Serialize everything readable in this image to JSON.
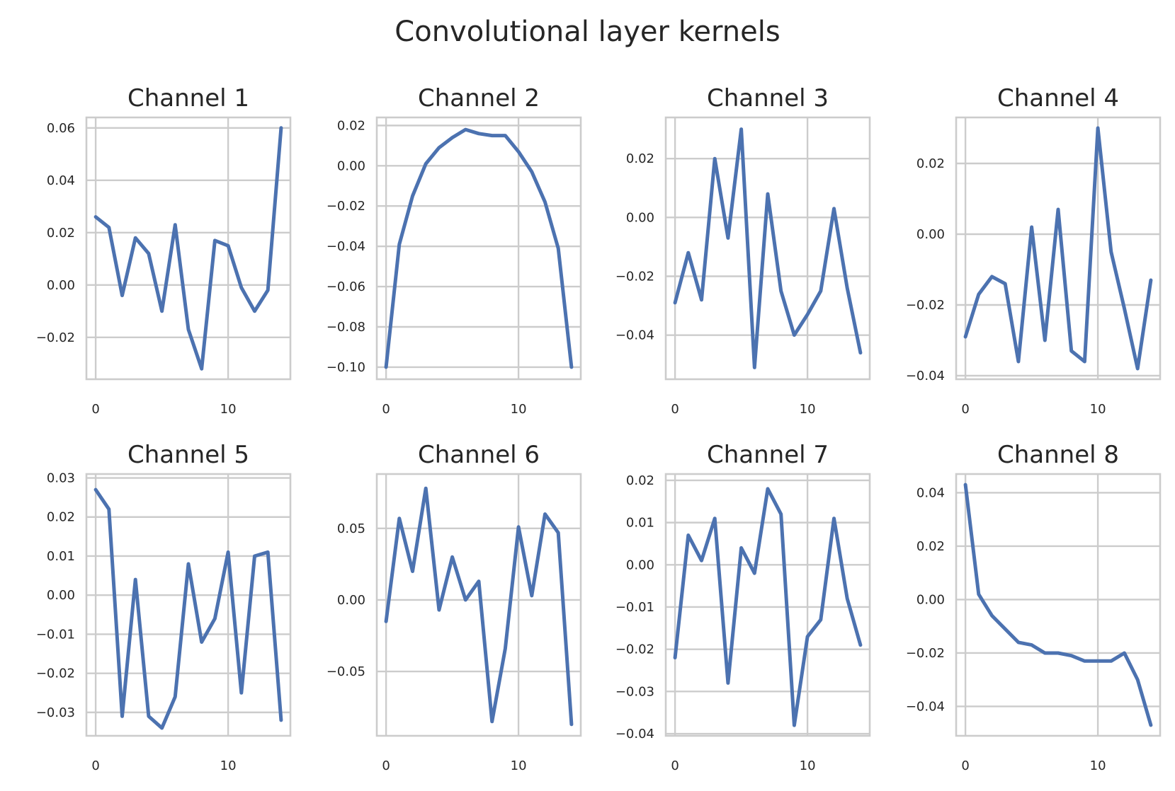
{
  "figure": {
    "title": "Convolutional layer kernels",
    "line_color": "#4c72b0",
    "grid_color": "#cccccc",
    "spine_color": "#cccccc"
  },
  "chart_data": [
    {
      "type": "line",
      "title": "Channel 1",
      "x": [
        0,
        1,
        2,
        3,
        4,
        5,
        6,
        7,
        8,
        9,
        10,
        11,
        12,
        13,
        14
      ],
      "values": [
        0.026,
        0.022,
        -0.004,
        0.018,
        0.012,
        -0.01,
        0.023,
        -0.017,
        -0.032,
        0.017,
        0.015,
        -0.001,
        -0.01,
        -0.002,
        0.06
      ],
      "xticks": [
        0,
        10
      ],
      "xtick_labels": [
        "0",
        "10"
      ],
      "yticks": [
        -0.02,
        0,
        0.02,
        0.04,
        0.06
      ],
      "ytick_labels": [
        "−0.02",
        "0.00",
        "0.02",
        "0.04",
        "0.06"
      ],
      "xlim": [
        -0.7,
        14.7
      ],
      "ylim": [
        -0.036,
        0.064
      ],
      "grid": true
    },
    {
      "type": "line",
      "title": "Channel 2",
      "x": [
        0,
        1,
        2,
        3,
        4,
        5,
        6,
        7,
        8,
        9,
        10,
        11,
        12,
        13,
        14
      ],
      "values": [
        -0.1,
        -0.039,
        -0.015,
        0.001,
        0.009,
        0.014,
        0.018,
        0.016,
        0.015,
        0.015,
        0.007,
        -0.003,
        -0.018,
        -0.041,
        -0.1
      ],
      "xticks": [
        0,
        10
      ],
      "xtick_labels": [
        "0",
        "10"
      ],
      "yticks": [
        -0.1,
        -0.08,
        -0.06,
        -0.04,
        -0.02,
        0,
        0.02
      ],
      "ytick_labels": [
        "−0.10",
        "−0.08",
        "−0.06",
        "−0.04",
        "−0.02",
        "0.00",
        "0.02"
      ],
      "xlim": [
        -0.7,
        14.7
      ],
      "ylim": [
        -0.106,
        0.024
      ],
      "grid": true
    },
    {
      "type": "line",
      "title": "Channel 3",
      "x": [
        0,
        1,
        2,
        3,
        4,
        5,
        6,
        7,
        8,
        9,
        10,
        11,
        12,
        13,
        14
      ],
      "values": [
        -0.029,
        -0.012,
        -0.028,
        0.02,
        -0.007,
        0.03,
        -0.051,
        0.008,
        -0.025,
        -0.04,
        -0.033,
        -0.025,
        0.003,
        -0.024,
        -0.046
      ],
      "xticks": [
        0,
        10
      ],
      "xtick_labels": [
        "0",
        "10"
      ],
      "yticks": [
        -0.04,
        -0.02,
        0,
        0.02
      ],
      "ytick_labels": [
        "−0.04",
        "−0.02",
        "0.00",
        "0.02"
      ],
      "xlim": [
        -0.7,
        14.7
      ],
      "ylim": [
        -0.055,
        0.034
      ],
      "grid": true
    },
    {
      "type": "line",
      "title": "Channel 4",
      "x": [
        0,
        1,
        2,
        3,
        4,
        5,
        6,
        7,
        8,
        9,
        10,
        11,
        12,
        13,
        14
      ],
      "values": [
        -0.029,
        -0.017,
        -0.012,
        -0.014,
        -0.036,
        0.002,
        -0.03,
        0.007,
        -0.033,
        -0.036,
        0.03,
        -0.005,
        -0.021,
        -0.038,
        -0.013
      ],
      "xticks": [
        0,
        10
      ],
      "xtick_labels": [
        "0",
        "10"
      ],
      "yticks": [
        -0.04,
        -0.02,
        0,
        0.02
      ],
      "ytick_labels": [
        "−0.04",
        "−0.02",
        "0.00",
        "0.02"
      ],
      "xlim": [
        -0.7,
        14.7
      ],
      "ylim": [
        -0.041,
        0.033
      ],
      "grid": true
    },
    {
      "type": "line",
      "title": "Channel 5",
      "x": [
        0,
        1,
        2,
        3,
        4,
        5,
        6,
        7,
        8,
        9,
        10,
        11,
        12,
        13,
        14
      ],
      "values": [
        0.027,
        0.022,
        -0.031,
        0.004,
        -0.031,
        -0.034,
        -0.026,
        0.008,
        -0.012,
        -0.006,
        0.011,
        -0.025,
        0.01,
        0.011,
        -0.032
      ],
      "xticks": [
        0,
        10
      ],
      "xtick_labels": [
        "0",
        "10"
      ],
      "yticks": [
        -0.03,
        -0.02,
        -0.01,
        0,
        0.01,
        0.02,
        0.03
      ],
      "ytick_labels": [
        "−0.03",
        "−0.02",
        "−0.01",
        "0.00",
        "0.01",
        "0.02",
        "0.03"
      ],
      "xlim": [
        -0.7,
        14.7
      ],
      "ylim": [
        -0.036,
        0.031
      ],
      "grid": true
    },
    {
      "type": "line",
      "title": "Channel 6",
      "x": [
        0,
        1,
        2,
        3,
        4,
        5,
        6,
        7,
        8,
        9,
        10,
        11,
        12,
        13,
        14
      ],
      "values": [
        -0.015,
        0.057,
        0.02,
        0.078,
        -0.007,
        0.03,
        0.0,
        0.013,
        -0.085,
        -0.034,
        0.051,
        0.003,
        0.06,
        0.047,
        -0.087
      ],
      "xticks": [
        0,
        10
      ],
      "xtick_labels": [
        "0",
        "10"
      ],
      "yticks": [
        -0.05,
        0,
        0.05
      ],
      "ytick_labels": [
        "−0.05",
        "0.00",
        "0.05"
      ],
      "xlim": [
        -0.7,
        14.7
      ],
      "ylim": [
        -0.095,
        0.088
      ],
      "grid": true
    },
    {
      "type": "line",
      "title": "Channel 7",
      "x": [
        0,
        1,
        2,
        3,
        4,
        5,
        6,
        7,
        8,
        9,
        10,
        11,
        12,
        13,
        14
      ],
      "values": [
        -0.022,
        0.007,
        0.001,
        0.011,
        -0.028,
        0.004,
        -0.002,
        0.018,
        0.012,
        -0.038,
        -0.017,
        -0.013,
        0.011,
        -0.008,
        -0.019
      ],
      "xticks": [
        0,
        10
      ],
      "xtick_labels": [
        "0",
        "10"
      ],
      "yticks": [
        -0.04,
        -0.03,
        -0.02,
        -0.01,
        0,
        0.01,
        0.02
      ],
      "ytick_labels": [
        "−0.04",
        "−0.03",
        "−0.02",
        "−0.01",
        "0.00",
        "0.01",
        "0.02"
      ],
      "xlim": [
        -0.7,
        14.7
      ],
      "ylim": [
        -0.0405,
        0.0215
      ],
      "grid": true
    },
    {
      "type": "line",
      "title": "Channel 8",
      "x": [
        0,
        1,
        2,
        3,
        4,
        5,
        6,
        7,
        8,
        9,
        10,
        11,
        12,
        13,
        14
      ],
      "values": [
        0.043,
        0.002,
        -0.006,
        -0.011,
        -0.016,
        -0.017,
        -0.02,
        -0.02,
        -0.021,
        -0.023,
        -0.023,
        -0.023,
        -0.02,
        -0.03,
        -0.047
      ],
      "xticks": [
        0,
        10
      ],
      "xtick_labels": [
        "0",
        "10"
      ],
      "yticks": [
        -0.04,
        -0.02,
        0,
        0.02,
        0.04
      ],
      "ytick_labels": [
        "−0.04",
        "−0.02",
        "0.00",
        "0.02",
        "0.04"
      ],
      "xlim": [
        -0.7,
        14.7
      ],
      "ylim": [
        -0.051,
        0.047
      ],
      "grid": true
    }
  ]
}
